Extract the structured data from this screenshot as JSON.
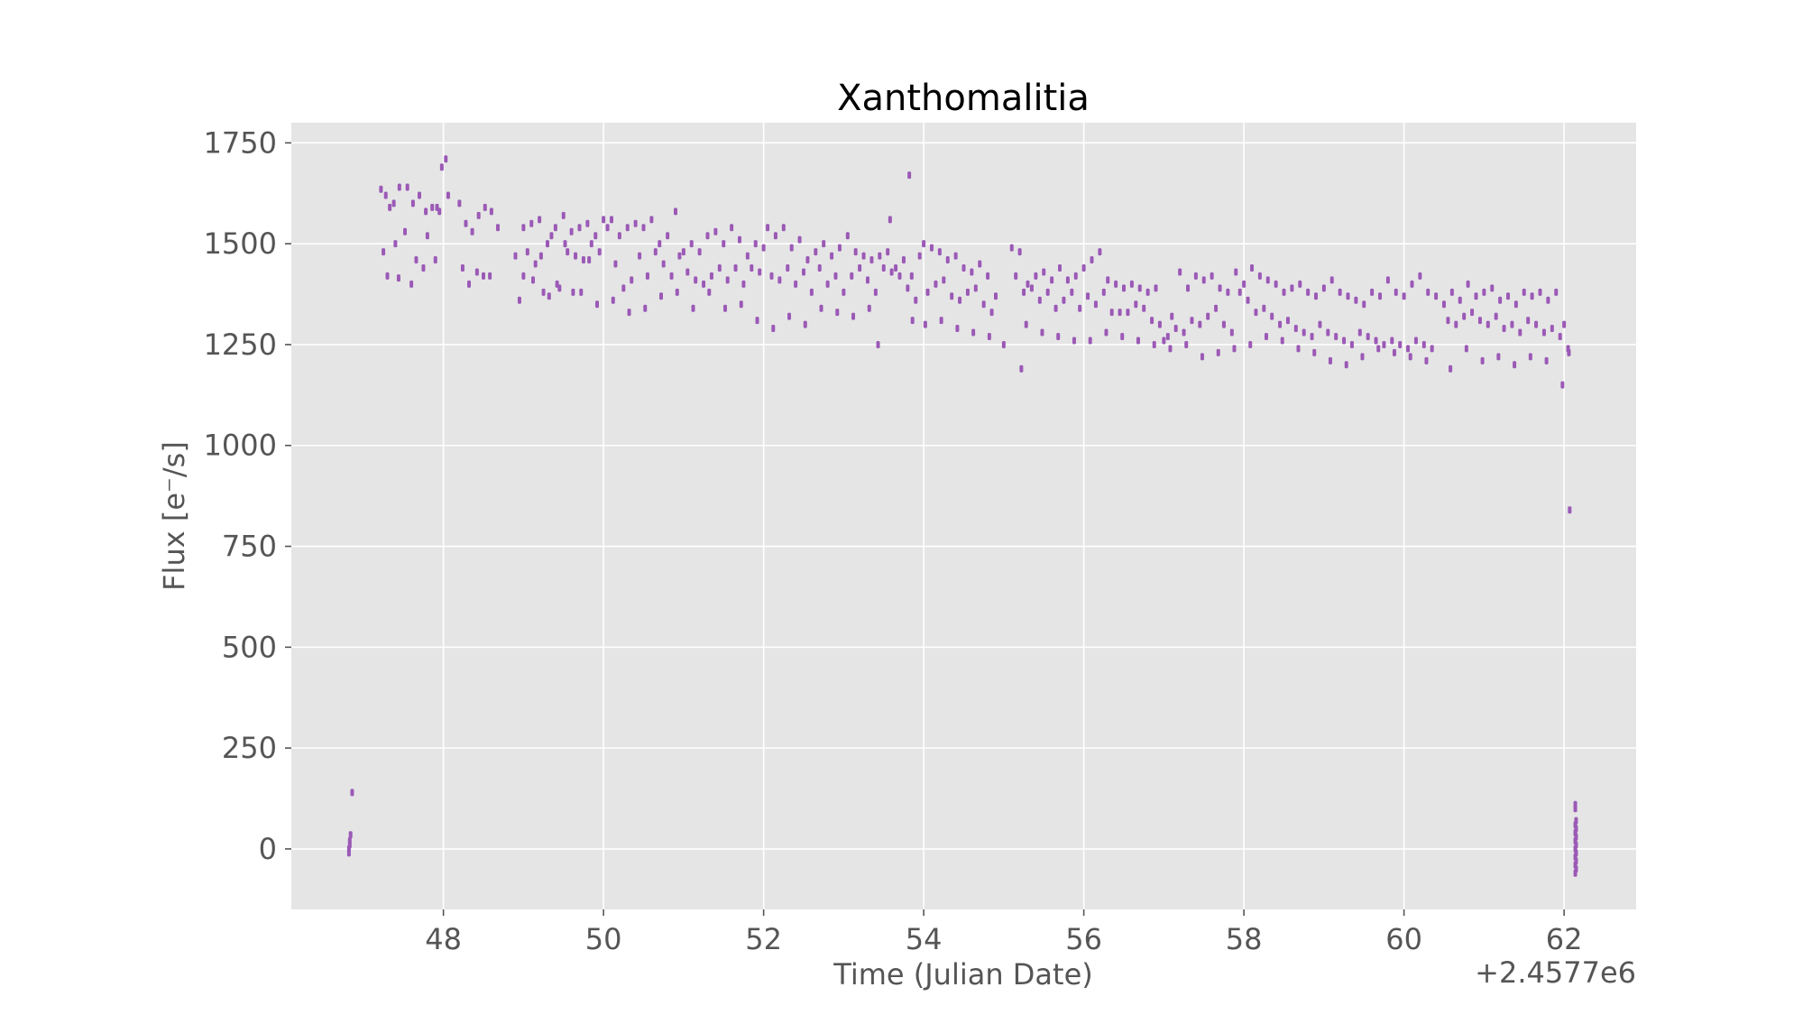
{
  "chart_data": {
    "type": "scatter",
    "title": "Xanthomalitia",
    "xlabel": "Time (Julian Date)",
    "ylabel": "Flux [e⁻/s]",
    "x_offset_label": "+2.4577e6",
    "xlim": [
      46.1,
      62.9
    ],
    "ylim": [
      -150,
      1800
    ],
    "xticks": [
      48,
      50,
      52,
      54,
      56,
      58,
      60,
      62
    ],
    "yticks": [
      0,
      250,
      500,
      750,
      1000,
      1250,
      1500,
      1750
    ],
    "grid": true,
    "marker_color": "#9b59b6",
    "background_color": "#e5e5e5",
    "series": [
      {
        "x": [
          46.82,
          46.82,
          46.83,
          46.83,
          46.84,
          46.86,
          47.22,
          47.28,
          47.33,
          47.38,
          47.45,
          47.55,
          47.62,
          47.7,
          47.78,
          47.86,
          47.92,
          47.98,
          48.03,
          47.25,
          47.4,
          47.52,
          47.66,
          47.8,
          47.95,
          48.06,
          47.3,
          47.44,
          47.6,
          47.75,
          47.9,
          48.2,
          48.28,
          48.36,
          48.44,
          48.52,
          48.6,
          48.68,
          48.24,
          48.32,
          48.42,
          48.5,
          48.58,
          48.9,
          49.0,
          49.1,
          49.2,
          49.3,
          49.4,
          49.5,
          49.6,
          49.7,
          49.8,
          49.9,
          50.0,
          48.95,
          49.05,
          49.15,
          49.25,
          49.35,
          49.45,
          49.55,
          49.65,
          49.75,
          49.85,
          49.95,
          50.05,
          49.0,
          49.12,
          49.22,
          49.32,
          49.42,
          49.52,
          49.62,
          49.72,
          49.82,
          49.92,
          50.1,
          50.2,
          50.3,
          50.4,
          50.5,
          50.6,
          50.7,
          50.8,
          50.9,
          51.0,
          51.1,
          51.2,
          51.3,
          51.4,
          51.5,
          51.6,
          51.7,
          51.8,
          51.9,
          52.0,
          50.15,
          50.25,
          50.35,
          50.45,
          50.55,
          50.65,
          50.75,
          50.85,
          50.95,
          51.05,
          51.15,
          51.25,
          51.35,
          51.45,
          51.55,
          51.65,
          51.75,
          51.85,
          51.95,
          50.12,
          50.32,
          50.52,
          50.72,
          50.92,
          51.12,
          51.32,
          51.52,
          51.72,
          51.92,
          52.05,
          52.15,
          52.25,
          52.35,
          52.45,
          52.55,
          52.65,
          52.75,
          52.85,
          52.95,
          53.05,
          53.15,
          53.25,
          53.35,
          53.45,
          53.55,
          53.65,
          53.75,
          53.85,
          53.95,
          52.1,
          52.2,
          52.3,
          52.4,
          52.5,
          52.6,
          52.7,
          52.8,
          52.9,
          53.0,
          53.1,
          53.2,
          53.3,
          53.4,
          53.5,
          53.6,
          53.7,
          53.8,
          53.9,
          52.12,
          52.32,
          52.52,
          52.72,
          52.92,
          53.12,
          53.32,
          53.43,
          53.58,
          53.82,
          53.86,
          54.0,
          54.1,
          54.2,
          54.3,
          54.4,
          54.5,
          54.6,
          54.7,
          54.8,
          54.9,
          54.05,
          54.15,
          54.25,
          54.35,
          54.45,
          54.55,
          54.65,
          54.75,
          54.85,
          54.02,
          54.22,
          54.42,
          54.62,
          54.82,
          55.0,
          55.1,
          55.2,
          55.22,
          55.3,
          55.4,
          55.5,
          55.6,
          55.7,
          55.8,
          55.9,
          56.0,
          56.1,
          56.2,
          56.3,
          56.4,
          56.5,
          56.6,
          56.7,
          56.8,
          56.9,
          55.15,
          55.25,
          55.35,
          55.45,
          55.55,
          55.65,
          55.75,
          55.85,
          55.95,
          56.05,
          56.15,
          56.25,
          56.35,
          56.45,
          56.55,
          56.65,
          56.75,
          56.85,
          56.95,
          55.28,
          55.48,
          55.68,
          55.88,
          56.08,
          56.28,
          56.48,
          56.68,
          56.88,
          57.0,
          57.1,
          57.2,
          57.3,
          57.4,
          57.5,
          57.6,
          57.7,
          57.8,
          57.9,
          58.0,
          58.1,
          58.2,
          58.3,
          58.4,
          58.5,
          58.6,
          58.7,
          58.8,
          58.9,
          57.05,
          57.15,
          57.25,
          57.35,
          57.45,
          57.55,
          57.65,
          57.75,
          57.85,
          57.95,
          58.05,
          58.15,
          58.25,
          58.35,
          58.45,
          58.55,
          58.65,
          58.75,
          58.85,
          58.95,
          57.08,
          57.28,
          57.48,
          57.68,
          57.88,
          58.08,
          58.28,
          58.48,
          58.68,
          58.88,
          59.0,
          59.1,
          59.2,
          59.3,
          59.4,
          59.5,
          59.6,
          59.7,
          59.8,
          59.9,
          60.0,
          60.1,
          60.2,
          60.3,
          60.4,
          59.05,
          59.15,
          59.25,
          59.35,
          59.45,
          59.55,
          59.65,
          59.75,
          59.85,
          59.95,
          60.05,
          60.15,
          60.25,
          60.35,
          59.08,
          59.28,
          59.48,
          59.68,
          59.88,
          60.08,
          60.28,
          60.5,
          60.6,
          60.7,
          60.8,
          60.9,
          61.0,
          61.1,
          61.2,
          61.3,
          61.4,
          61.5,
          61.6,
          61.7,
          61.8,
          61.9,
          62.0,
          60.55,
          60.65,
          60.75,
          60.85,
          60.95,
          61.05,
          61.15,
          61.25,
          61.35,
          61.45,
          61.55,
          61.65,
          61.75,
          61.85,
          61.95,
          62.05,
          60.58,
          60.78,
          60.98,
          61.18,
          61.38,
          61.58,
          61.78,
          61.98,
          62.06,
          62.07,
          62.14,
          62.14,
          62.14,
          62.14,
          62.14,
          62.14,
          62.14,
          62.15,
          62.15,
          62.15,
          62.15,
          62.15,
          62.15,
          62.15,
          62.14,
          62.14
        ],
        "y": [
          -10,
          0,
          10,
          20,
          35,
          140,
          1635,
          1620,
          1590,
          1600,
          1640,
          1640,
          1600,
          1620,
          1580,
          1590,
          1590,
          1690,
          1710,
          1480,
          1500,
          1530,
          1460,
          1520,
          1580,
          1620,
          1420,
          1415,
          1400,
          1440,
          1460,
          1600,
          1550,
          1530,
          1570,
          1590,
          1580,
          1540,
          1440,
          1400,
          1430,
          1420,
          1420,
          1470,
          1540,
          1550,
          1560,
          1500,
          1540,
          1570,
          1530,
          1540,
          1550,
          1520,
          1560,
          1360,
          1480,
          1450,
          1380,
          1520,
          1390,
          1480,
          1470,
          1460,
          1500,
          1480,
          1540,
          1420,
          1410,
          1470,
          1370,
          1400,
          1500,
          1380,
          1380,
          1460,
          1350,
          1560,
          1520,
          1540,
          1550,
          1540,
          1560,
          1500,
          1520,
          1580,
          1480,
          1500,
          1480,
          1520,
          1530,
          1500,
          1540,
          1510,
          1470,
          1500,
          1490,
          1450,
          1390,
          1410,
          1470,
          1420,
          1480,
          1450,
          1420,
          1470,
          1430,
          1410,
          1400,
          1420,
          1440,
          1410,
          1440,
          1400,
          1440,
          1430,
          1360,
          1330,
          1340,
          1370,
          1380,
          1340,
          1380,
          1340,
          1350,
          1310,
          1540,
          1520,
          1540,
          1490,
          1510,
          1460,
          1480,
          1500,
          1470,
          1490,
          1520,
          1480,
          1470,
          1460,
          1470,
          1480,
          1440,
          1460,
          1420,
          1470,
          1420,
          1410,
          1440,
          1400,
          1430,
          1380,
          1440,
          1400,
          1420,
          1380,
          1420,
          1440,
          1410,
          1380,
          1440,
          1430,
          1420,
          1390,
          1360,
          1290,
          1320,
          1300,
          1340,
          1330,
          1320,
          1340,
          1250,
          1560,
          1670,
          1310,
          1500,
          1490,
          1480,
          1460,
          1470,
          1440,
          1430,
          1450,
          1420,
          1370,
          1380,
          1400,
          1410,
          1370,
          1360,
          1380,
          1390,
          1350,
          1330,
          1300,
          1310,
          1290,
          1280,
          1270,
          1250,
          1490,
          1480,
          1190,
          1400,
          1420,
          1430,
          1410,
          1440,
          1410,
          1420,
          1440,
          1460,
          1480,
          1410,
          1400,
          1390,
          1400,
          1390,
          1380,
          1390,
          1420,
          1380,
          1390,
          1360,
          1380,
          1340,
          1360,
          1380,
          1340,
          1370,
          1350,
          1380,
          1330,
          1330,
          1330,
          1350,
          1340,
          1310,
          1300,
          1300,
          1280,
          1270,
          1260,
          1260,
          1280,
          1270,
          1260,
          1250,
          1260,
          1320,
          1430,
          1390,
          1420,
          1410,
          1420,
          1390,
          1380,
          1430,
          1400,
          1440,
          1420,
          1410,
          1400,
          1380,
          1390,
          1400,
          1380,
          1370,
          1270,
          1290,
          1280,
          1310,
          1300,
          1320,
          1340,
          1300,
          1280,
          1380,
          1360,
          1330,
          1340,
          1320,
          1300,
          1310,
          1290,
          1280,
          1270,
          1300,
          1240,
          1250,
          1220,
          1230,
          1240,
          1250,
          1270,
          1260,
          1240,
          1230,
          1390,
          1410,
          1380,
          1370,
          1360,
          1350,
          1380,
          1370,
          1410,
          1380,
          1370,
          1400,
          1420,
          1380,
          1370,
          1280,
          1270,
          1260,
          1250,
          1280,
          1270,
          1260,
          1250,
          1260,
          1250,
          1240,
          1260,
          1250,
          1240,
          1210,
          1200,
          1220,
          1240,
          1230,
          1220,
          1210,
          1350,
          1380,
          1360,
          1400,
          1370,
          1380,
          1390,
          1360,
          1370,
          1350,
          1380,
          1370,
          1380,
          1360,
          1380,
          1300,
          1310,
          1300,
          1320,
          1330,
          1310,
          1300,
          1320,
          1290,
          1300,
          1280,
          1310,
          1300,
          1280,
          1290,
          1270,
          1240,
          1190,
          1240,
          1210,
          1220,
          1200,
          1220,
          1210,
          1150,
          1230,
          840,
          -60,
          -40,
          -20,
          0,
          20,
          40,
          60,
          70,
          50,
          30,
          10,
          -10,
          -30,
          -50,
          100,
          110
        ]
      }
    ]
  }
}
